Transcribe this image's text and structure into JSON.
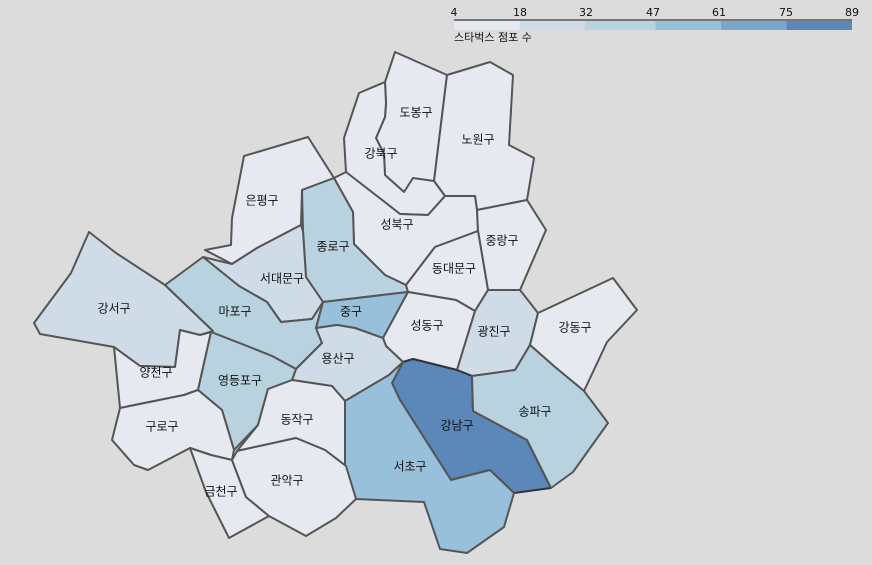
{
  "legend": {
    "title": "스타벅스 점포 수",
    "ticks": [
      "4",
      "18",
      "32",
      "47",
      "61",
      "75",
      "89"
    ],
    "domain": [
      4,
      89
    ],
    "bins": [
      {
        "from": 4,
        "to": 18,
        "color": "#e6e9f0"
      },
      {
        "from": 18,
        "to": 32,
        "color": "#cfdce8"
      },
      {
        "from": 32,
        "to": 47,
        "color": "#b8d2e0"
      },
      {
        "from": 47,
        "to": 61,
        "color": "#99c0da"
      },
      {
        "from": 61,
        "to": 75,
        "color": "#78a6cc"
      },
      {
        "from": 75,
        "to": 89,
        "color": "#5b88b8"
      }
    ]
  },
  "districts": [
    {
      "id": "dobong",
      "name": "도봉구",
      "color": "#e6e9f0"
    },
    {
      "id": "nowon",
      "name": "노원구",
      "color": "#e6e9f0"
    },
    {
      "id": "gangbuk",
      "name": "강북구",
      "color": "#e6e9f0"
    },
    {
      "id": "eunpyeong",
      "name": "은평구",
      "color": "#e6e9f0"
    },
    {
      "id": "seongbuk",
      "name": "성북구",
      "color": "#e6e9f0"
    },
    {
      "id": "jongno",
      "name": "종로구",
      "color": "#b8d2e0"
    },
    {
      "id": "jungnang",
      "name": "중랑구",
      "color": "#e6e9f0"
    },
    {
      "id": "seodaemun",
      "name": "서대문구",
      "color": "#cfdce8"
    },
    {
      "id": "dongdaemun",
      "name": "동대문구",
      "color": "#e6e9f0"
    },
    {
      "id": "gangseo",
      "name": "강서구",
      "color": "#cfdce8"
    },
    {
      "id": "mapo",
      "name": "마포구",
      "color": "#b8d2e0"
    },
    {
      "id": "jung",
      "name": "중구",
      "color": "#99c0da"
    },
    {
      "id": "seongdong",
      "name": "성동구",
      "color": "#e6e9f0"
    },
    {
      "id": "gwangjin",
      "name": "광진구",
      "color": "#cfdce8"
    },
    {
      "id": "gangdong",
      "name": "강동구",
      "color": "#e6e9f0"
    },
    {
      "id": "yangcheon",
      "name": "양천구",
      "color": "#e6e9f0"
    },
    {
      "id": "yongsan",
      "name": "용산구",
      "color": "#cfdce8"
    },
    {
      "id": "yeongdeungpo",
      "name": "영등포구",
      "color": "#b8d2e0"
    },
    {
      "id": "guro",
      "name": "구로구",
      "color": "#e6e9f0"
    },
    {
      "id": "dongjak",
      "name": "동작구",
      "color": "#e6e9f0"
    },
    {
      "id": "gangnam",
      "name": "강남구",
      "color": "#5b88b8"
    },
    {
      "id": "songpa",
      "name": "송파구",
      "color": "#b8d2e0"
    },
    {
      "id": "seocho",
      "name": "서초구",
      "color": "#99c0da"
    },
    {
      "id": "geumcheon",
      "name": "금천구",
      "color": "#e6e9f0"
    },
    {
      "id": "gwanak",
      "name": "관악구",
      "color": "#e6e9f0"
    }
  ]
}
